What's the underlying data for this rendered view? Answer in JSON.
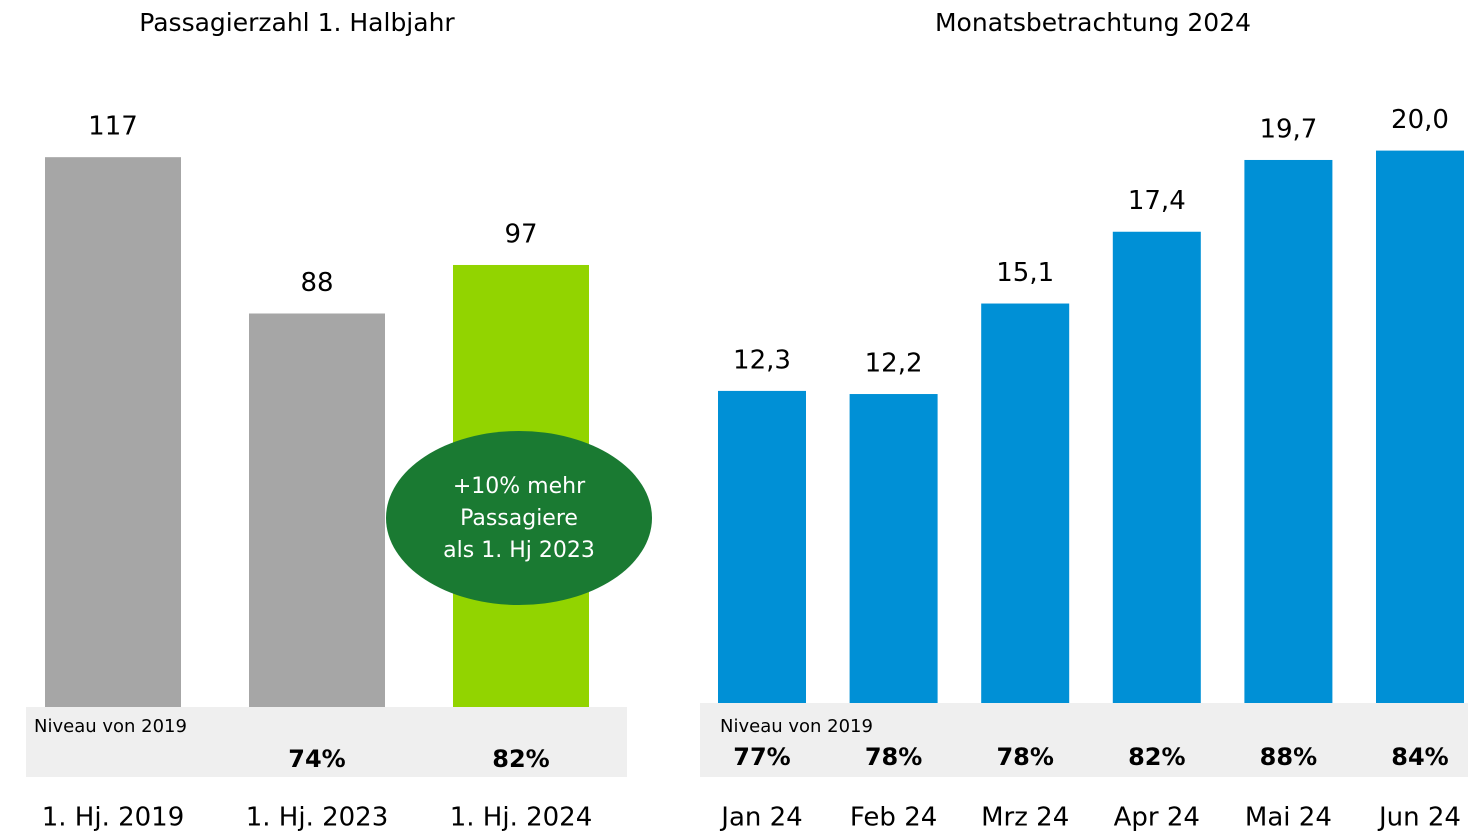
{
  "chart_data": [
    {
      "type": "bar",
      "title": "Passagierzahl 1. Halbjahr",
      "categories": [
        "1. Hj. 2019",
        "1. Hj. 2023",
        "1. Hj. 2024"
      ],
      "values": [
        117,
        88,
        97
      ],
      "colors": [
        "#a6a6a6",
        "#a6a6a6",
        "#92d400"
      ],
      "ylim": [
        15,
        120
      ],
      "niveau_title": "Niveau von 2019",
      "niveau": [
        null,
        74,
        82
      ],
      "niveau_labels": [
        null,
        "74%",
        "82%"
      ],
      "annotation": [
        "+10% mehr",
        "Passagiere",
        "als 1. Hj 2023"
      ]
    },
    {
      "type": "bar",
      "title": "Monatsbetrachtung 2024",
      "categories": [
        "Jan 24",
        "Feb 24",
        "Mrz 24",
        "Apr 24",
        "Mai 24",
        "Jun 24"
      ],
      "values": [
        12.3,
        12.2,
        15.1,
        17.4,
        19.7,
        20.0
      ],
      "value_labels": [
        "12,3",
        "12,2",
        "15,1",
        "17,4",
        "19,7",
        "20,0"
      ],
      "color": "#0090d6",
      "ylim": [
        2.3,
        20.5
      ],
      "niveau_title": "Niveau von 2019",
      "niveau": [
        77,
        78,
        78,
        82,
        88,
        84
      ],
      "niveau_labels": [
        "77%",
        "78%",
        "78%",
        "82%",
        "88%",
        "84%"
      ]
    }
  ]
}
